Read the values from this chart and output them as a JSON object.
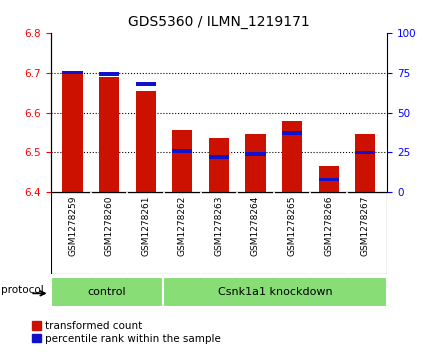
{
  "title": "GDS5360 / ILMN_1219171",
  "samples": [
    "GSM1278259",
    "GSM1278260",
    "GSM1278261",
    "GSM1278262",
    "GSM1278263",
    "GSM1278264",
    "GSM1278265",
    "GSM1278266",
    "GSM1278267"
  ],
  "transformed_count": [
    6.7,
    6.69,
    6.653,
    6.556,
    6.535,
    6.545,
    6.58,
    6.465,
    6.547
  ],
  "percentile_rank": [
    75,
    74,
    68,
    26,
    22,
    24,
    37,
    8,
    25
  ],
  "ylim_left": [
    6.4,
    6.8
  ],
  "ylim_right": [
    0,
    100
  ],
  "yticks_left": [
    6.4,
    6.5,
    6.6,
    6.7,
    6.8
  ],
  "yticks_right": [
    0,
    25,
    50,
    75,
    100
  ],
  "bar_color_red": "#cc1100",
  "bar_color_blue": "#1111cc",
  "groups": [
    {
      "label": "control",
      "start": 0,
      "end": 3,
      "color": "#88dd77"
    },
    {
      "label": "Csnk1a1 knockdown",
      "start": 3,
      "end": 9,
      "color": "#88dd77"
    }
  ],
  "protocol_label": "protocol",
  "legend_red": "transformed count",
  "legend_blue": "percentile rank within the sample",
  "bar_width": 0.55,
  "ticklabel_bg": "#d0d0d0",
  "group_bg": "#88dd77"
}
